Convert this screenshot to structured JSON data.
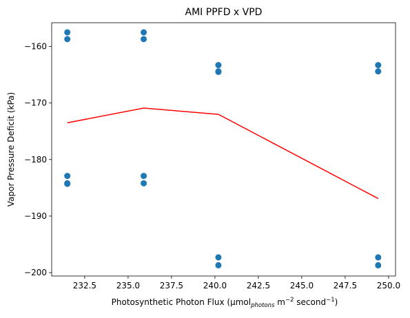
{
  "chart_data": {
    "type": "scatter",
    "title": "AMI PPFD x VPD",
    "xlabel": {
      "main": "Photosynthetic Photon Flux (µmol",
      "sub": "photons",
      "mid": " m",
      "sup1": "−2",
      "rest": " second",
      "sup2": "−1",
      "end": ")"
    },
    "ylabel": "Vapor Pressure Deficit (kPa)",
    "xlim": [
      230.6,
      250.4
    ],
    "ylim": [
      -200.6,
      -155.8
    ],
    "xticks": [
      232.5,
      235.0,
      237.5,
      240.0,
      242.5,
      245.0,
      247.5,
      250.0
    ],
    "xtick_labels": [
      "232.5",
      "235.0",
      "237.5",
      "240.0",
      "242.5",
      "245.0",
      "247.5",
      "250.0"
    ],
    "yticks": [
      -200,
      -190,
      -180,
      -170,
      -160
    ],
    "ytick_labels": [
      "−200",
      "−190",
      "−180",
      "−170",
      "−160"
    ],
    "series": [
      {
        "kind": "scatter",
        "color": "#1f77b4",
        "points": [
          {
            "x": 231.5,
            "y": -157.5
          },
          {
            "x": 231.5,
            "y": -158.7
          },
          {
            "x": 231.5,
            "y": -182.9
          },
          {
            "x": 231.5,
            "y": -184.2
          },
          {
            "x": 231.5,
            "y": -184.3
          },
          {
            "x": 235.9,
            "y": -157.5
          },
          {
            "x": 235.9,
            "y": -158.7
          },
          {
            "x": 235.9,
            "y": -182.9
          },
          {
            "x": 235.9,
            "y": -184.2
          },
          {
            "x": 240.2,
            "y": -163.3
          },
          {
            "x": 240.2,
            "y": -164.4
          },
          {
            "x": 240.2,
            "y": -164.5
          },
          {
            "x": 240.2,
            "y": -197.3
          },
          {
            "x": 240.2,
            "y": -198.7
          },
          {
            "x": 249.4,
            "y": -163.3
          },
          {
            "x": 249.4,
            "y": -164.4
          },
          {
            "x": 249.4,
            "y": -197.3
          },
          {
            "x": 249.4,
            "y": -198.7
          }
        ]
      },
      {
        "kind": "line",
        "color": "#ff0000",
        "points": [
          {
            "x": 231.5,
            "y": -173.5
          },
          {
            "x": 235.9,
            "y": -170.9
          },
          {
            "x": 240.2,
            "y": -172.0
          },
          {
            "x": 249.4,
            "y": -186.9
          }
        ]
      }
    ],
    "grid": false,
    "legend": "none"
  }
}
